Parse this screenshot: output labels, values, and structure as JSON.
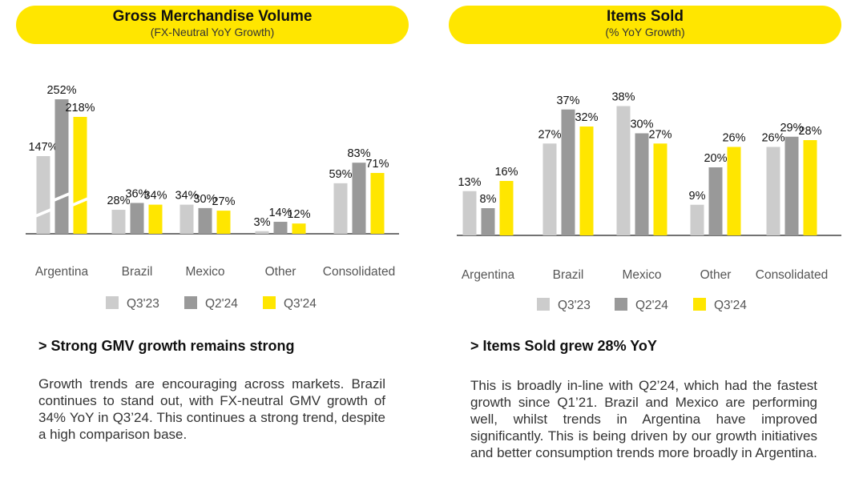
{
  "colors": {
    "q3_23": "#cccccc",
    "q2_24": "#999999",
    "q3_24": "#ffe600",
    "accent": "#ffe600"
  },
  "left": {
    "title": "Gross Merchandise Volume",
    "subtitle": "(FX-Neutral YoY Growth)",
    "heading": "> Strong GMV growth remains strong",
    "body": "Growth trends are encouraging across markets. Brazil continues to stand out, with FX-neutral GMV growth of 34% YoY in Q3’24. This continues a strong trend, despite a high comparison base."
  },
  "right": {
    "title": "Items Sold",
    "subtitle": "(% YoY Growth)",
    "heading": "> Items Sold grew 28% YoY",
    "body": "This is broadly in-line with Q2’24, which had the fastest growth since Q1’21. Brazil and Mexico are performing well, whilst trends in Argentina have improved significantly. This is being driven by our growth initiatives and better consumption trends more broadly in Argentina."
  },
  "chart_data": [
    {
      "type": "bar",
      "title": "Gross Merchandise Volume",
      "subtitle": "(FX-Neutral YoY Growth)",
      "categories": [
        "Argentina",
        "Brazil",
        "Mexico",
        "Other",
        "Consolidated"
      ],
      "series": [
        {
          "name": "Q3'23",
          "values": [
            147,
            28,
            34,
            3,
            59
          ],
          "labels": [
            "147%",
            "28%",
            "34%",
            "3%",
            "59%"
          ]
        },
        {
          "name": "Q2'24",
          "values": [
            252,
            36,
            30,
            14,
            83
          ],
          "labels": [
            "252%",
            "36%",
            "30%",
            "14%",
            "83%"
          ]
        },
        {
          "name": "Q3'24",
          "values": [
            218,
            34,
            27,
            12,
            71
          ],
          "labels": [
            "218%",
            "34%",
            "27%",
            "12%",
            "71%"
          ]
        }
      ],
      "axis_break": "Argentina",
      "legend": "bottom",
      "grid": false
    },
    {
      "type": "bar",
      "title": "Items Sold",
      "subtitle": "(% YoY Growth)",
      "categories": [
        "Argentina",
        "Brazil",
        "Mexico",
        "Other",
        "Consolidated"
      ],
      "series": [
        {
          "name": "Q3'23",
          "values": [
            13,
            27,
            38,
            9,
            26
          ],
          "labels": [
            "13%",
            "27%",
            "38%",
            "9%",
            "26%"
          ]
        },
        {
          "name": "Q2'24",
          "values": [
            8,
            37,
            30,
            20,
            29
          ],
          "labels": [
            "8%",
            "37%",
            "30%",
            "20%",
            "29%"
          ]
        },
        {
          "name": "Q3'24",
          "values": [
            16,
            32,
            27,
            26,
            28
          ],
          "labels": [
            "16%",
            "32%",
            "27%",
            "26%",
            "28%"
          ]
        }
      ],
      "legend": "bottom",
      "grid": false
    }
  ]
}
